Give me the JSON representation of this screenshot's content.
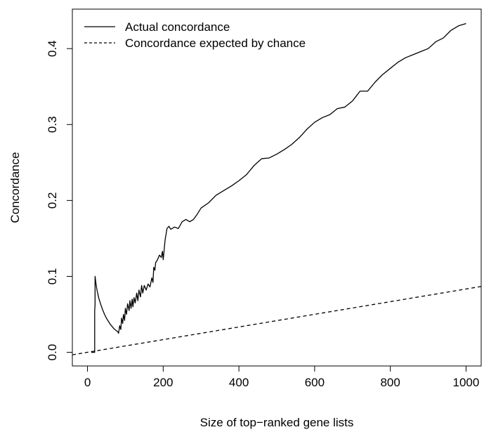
{
  "chart_data": {
    "type": "line",
    "title": "",
    "xlabel": "Size of top−ranked gene lists",
    "ylabel": "Concordance",
    "xlim": [
      -40,
      1040
    ],
    "ylim": [
      -0.018,
      0.452
    ],
    "xticks": [
      0,
      200,
      400,
      600,
      800,
      1000
    ],
    "xtick_labels": [
      "0",
      "200",
      "400",
      "600",
      "800",
      "1000"
    ],
    "yticks": [
      0.0,
      0.1,
      0.2,
      0.3,
      0.4
    ],
    "ytick_labels": [
      "0.0",
      "0.1",
      "0.2",
      "0.3",
      "0.4"
    ],
    "grid": false,
    "legend_position": "top-left",
    "series": [
      {
        "name": "Actual concordance",
        "style": "solid",
        "color": "#000000",
        "x": [
          10,
          19,
          19,
          20,
          20,
          22,
          25,
          30,
          35,
          40,
          45,
          50,
          55,
          60,
          65,
          70,
          75,
          80,
          82,
          85,
          88,
          90,
          93,
          95,
          98,
          100,
          103,
          106,
          110,
          112,
          115,
          118,
          120,
          123,
          126,
          130,
          133,
          136,
          140,
          143,
          146,
          150,
          155,
          160,
          165,
          170,
          173,
          175,
          178,
          180,
          185,
          190,
          195,
          198,
          200,
          205,
          210,
          215,
          220,
          230,
          240,
          250,
          260,
          270,
          280,
          290,
          300,
          320,
          340,
          360,
          380,
          400,
          420,
          440,
          460,
          480,
          500,
          520,
          540,
          560,
          580,
          600,
          620,
          640,
          660,
          680,
          700,
          720,
          740,
          760,
          780,
          800,
          820,
          840,
          860,
          880,
          900,
          920,
          940,
          960,
          980,
          1000
        ],
        "values": [
          0.0,
          0.0,
          0.055,
          0.062,
          0.1,
          0.092,
          0.082,
          0.071,
          0.063,
          0.056,
          0.05,
          0.045,
          0.041,
          0.037,
          0.034,
          0.031,
          0.029,
          0.027,
          0.025,
          0.035,
          0.03,
          0.045,
          0.038,
          0.05,
          0.042,
          0.058,
          0.05,
          0.064,
          0.055,
          0.068,
          0.058,
          0.07,
          0.06,
          0.072,
          0.065,
          0.078,
          0.068,
          0.082,
          0.073,
          0.088,
          0.078,
          0.088,
          0.082,
          0.09,
          0.086,
          0.098,
          0.092,
          0.112,
          0.108,
          0.118,
          0.122,
          0.128,
          0.125,
          0.133,
          0.122,
          0.148,
          0.163,
          0.166,
          0.162,
          0.165,
          0.163,
          0.172,
          0.175,
          0.172,
          0.175,
          0.182,
          0.19,
          0.197,
          0.207,
          0.213,
          0.219,
          0.226,
          0.234,
          0.246,
          0.255,
          0.256,
          0.261,
          0.267,
          0.274,
          0.283,
          0.294,
          0.303,
          0.309,
          0.313,
          0.321,
          0.323,
          0.331,
          0.344,
          0.344,
          0.356,
          0.366,
          0.374,
          0.382,
          0.388,
          0.392,
          0.396,
          0.4,
          0.409,
          0.414,
          0.424,
          0.43,
          0.433
        ]
      },
      {
        "name": "Concordance expected by chance",
        "style": "dashed",
        "color": "#000000",
        "x": [
          -40,
          1040
        ],
        "values": [
          -0.0033,
          0.0867
        ]
      }
    ]
  }
}
